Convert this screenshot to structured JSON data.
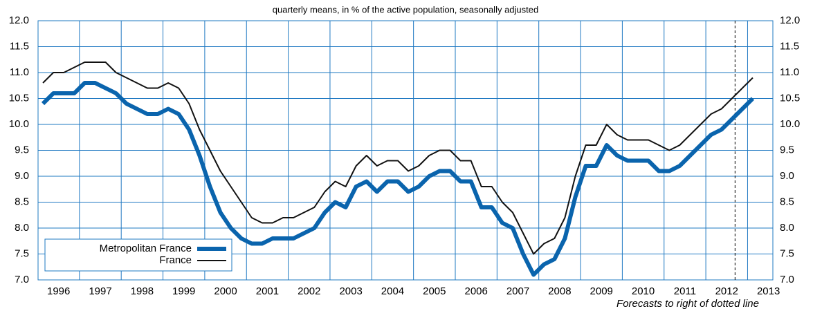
{
  "chart_data": {
    "type": "line",
    "subtitle": "quarterly means, in % of the active population, seasonally adjusted",
    "annotation": {
      "text": "Forecasts to right of dotted line",
      "x": 2012.7
    },
    "x": [
      1996.125,
      1996.375,
      1996.625,
      1996.875,
      1997.125,
      1997.375,
      1997.625,
      1997.875,
      1998.125,
      1998.375,
      1998.625,
      1998.875,
      1999.125,
      1999.375,
      1999.625,
      1999.875,
      2000.125,
      2000.375,
      2000.625,
      2000.875,
      2001.125,
      2001.375,
      2001.625,
      2001.875,
      2002.125,
      2002.375,
      2002.625,
      2002.875,
      2003.125,
      2003.375,
      2003.625,
      2003.875,
      2004.125,
      2004.375,
      2004.625,
      2004.875,
      2005.125,
      2005.375,
      2005.625,
      2005.875,
      2006.125,
      2006.375,
      2006.625,
      2006.875,
      2007.125,
      2007.375,
      2007.625,
      2007.875,
      2008.125,
      2008.375,
      2008.625,
      2008.875,
      2009.125,
      2009.375,
      2009.625,
      2009.875,
      2010.125,
      2010.375,
      2010.625,
      2010.875,
      2011.125,
      2011.375,
      2011.625,
      2011.875,
      2012.125,
      2012.375,
      2012.625,
      2012.875,
      2013.125
    ],
    "series": [
      {
        "name": "Metropolitan France",
        "color": "#0a64ad",
        "width": 6,
        "values": [
          10.4,
          10.6,
          10.6,
          10.6,
          10.8,
          10.8,
          10.7,
          10.6,
          10.4,
          10.3,
          10.2,
          10.2,
          10.3,
          10.2,
          9.9,
          9.4,
          8.8,
          8.3,
          8.0,
          7.8,
          7.7,
          7.7,
          7.8,
          7.8,
          7.8,
          7.9,
          8.0,
          8.3,
          8.5,
          8.4,
          8.8,
          8.9,
          8.7,
          8.9,
          8.9,
          8.7,
          8.8,
          9.0,
          9.1,
          9.1,
          8.9,
          8.9,
          8.4,
          8.4,
          8.1,
          8.0,
          7.5,
          7.1,
          7.3,
          7.4,
          7.8,
          8.6,
          9.2,
          9.2,
          9.6,
          9.4,
          9.3,
          9.3,
          9.3,
          9.1,
          9.1,
          9.2,
          9.4,
          9.6,
          9.8,
          9.9,
          10.1,
          10.3,
          10.5
        ]
      },
      {
        "name": "France",
        "color": "#111111",
        "width": 2,
        "values": [
          10.8,
          11.0,
          11.0,
          11.1,
          11.2,
          11.2,
          11.2,
          11.0,
          10.9,
          10.8,
          10.7,
          10.7,
          10.8,
          10.7,
          10.4,
          9.9,
          9.5,
          9.1,
          8.8,
          8.5,
          8.2,
          8.1,
          8.1,
          8.2,
          8.2,
          8.3,
          8.4,
          8.7,
          8.9,
          8.8,
          9.2,
          9.4,
          9.2,
          9.3,
          9.3,
          9.1,
          9.2,
          9.4,
          9.5,
          9.5,
          9.3,
          9.3,
          8.8,
          8.8,
          8.5,
          8.3,
          7.9,
          7.5,
          7.7,
          7.8,
          8.2,
          9.0,
          9.6,
          9.6,
          10.0,
          9.8,
          9.7,
          9.7,
          9.7,
          9.6,
          9.5,
          9.6,
          9.8,
          10.0,
          10.2,
          10.3,
          10.5,
          10.7,
          10.9
        ]
      }
    ],
    "xlim": [
      1996,
      2013.6
    ],
    "xticks": [
      {
        "value": 1996,
        "label": "1996"
      },
      {
        "value": 1997,
        "label": "1997"
      },
      {
        "value": 1998,
        "label": "1998"
      },
      {
        "value": 1999,
        "label": "1999"
      },
      {
        "value": 2000,
        "label": "2000"
      },
      {
        "value": 2001,
        "label": "2001"
      },
      {
        "value": 2002,
        "label": "2002"
      },
      {
        "value": 2003,
        "label": "2003"
      },
      {
        "value": 2004,
        "label": "2004"
      },
      {
        "value": 2005,
        "label": "2005"
      },
      {
        "value": 2006,
        "label": "2006"
      },
      {
        "value": 2007,
        "label": "2007"
      },
      {
        "value": 2008,
        "label": "2008"
      },
      {
        "value": 2009,
        "label": "2009"
      },
      {
        "value": 2010,
        "label": "2010"
      },
      {
        "value": 2011,
        "label": "2011"
      },
      {
        "value": 2012,
        "label": "2012"
      },
      {
        "value": 2013,
        "label": "2013"
      }
    ],
    "ylim": [
      7,
      12
    ],
    "yticks": [
      {
        "value": 7,
        "label": "7.0"
      },
      {
        "value": 7.5,
        "label": "7.5"
      },
      {
        "value": 8,
        "label": "8.0"
      },
      {
        "value": 8.5,
        "label": "8.5"
      },
      {
        "value": 9,
        "label": "9.0"
      },
      {
        "value": 9.5,
        "label": "9.5"
      },
      {
        "value": 10,
        "label": "10.0"
      },
      {
        "value": 10.5,
        "label": "10.5"
      },
      {
        "value": 11,
        "label": "11.0"
      },
      {
        "value": 11.5,
        "label": "11.5"
      },
      {
        "value": 12,
        "label": "12.0"
      }
    ],
    "grid": true,
    "grid_color": "#1e78c2",
    "legend": "lower left"
  }
}
